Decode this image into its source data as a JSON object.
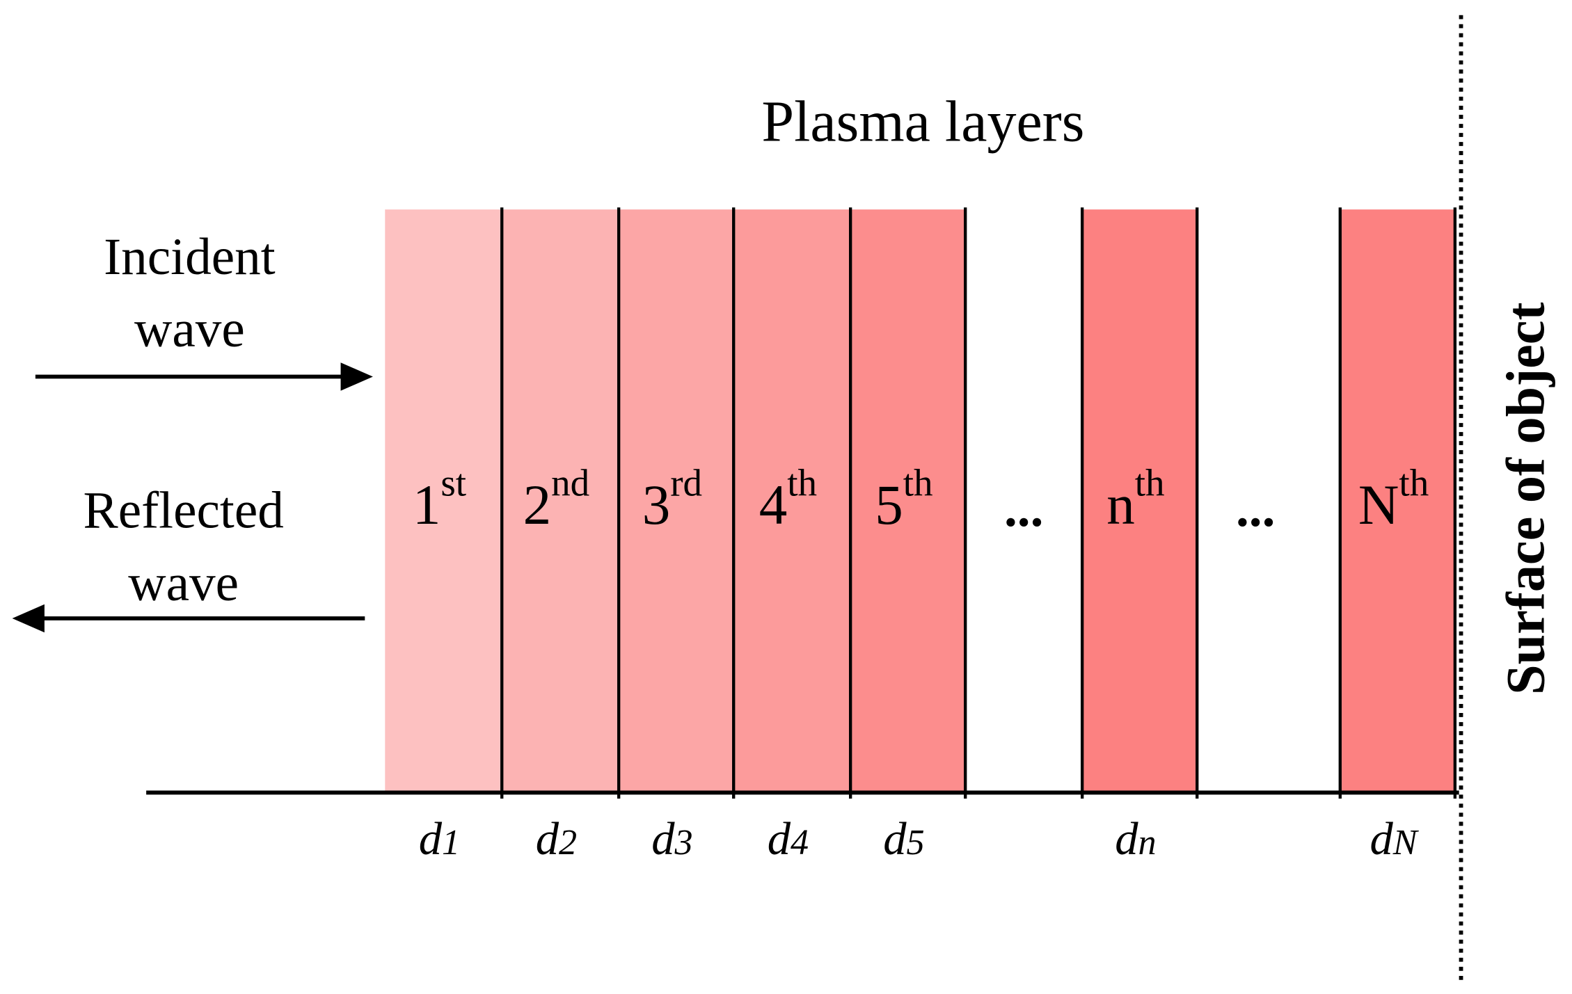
{
  "title": "Plasma layers",
  "incident_wave": {
    "lines": [
      "Incident",
      "wave"
    ]
  },
  "reflected_wave": {
    "lines": [
      "Reflected",
      "wave"
    ]
  },
  "layers": [
    {
      "label": "1",
      "sup": "st",
      "thickness": "d",
      "sub": "1"
    },
    {
      "label": "2",
      "sup": "nd",
      "thickness": "d",
      "sub": "2"
    },
    {
      "label": "3",
      "sup": "rd",
      "thickness": "d",
      "sub": "3"
    },
    {
      "label": "4",
      "sup": "th",
      "thickness": "d",
      "sub": "4"
    },
    {
      "label": "5",
      "sup": "th",
      "thickness": "d",
      "sub": "5"
    },
    {
      "label": "n",
      "sup": "th",
      "thickness": "d",
      "sub": "n"
    },
    {
      "label": "N",
      "sup": "th",
      "thickness": "d",
      "sub": "N"
    }
  ],
  "ellipses": [
    "...",
    "..."
  ],
  "surface": "Surface of object"
}
